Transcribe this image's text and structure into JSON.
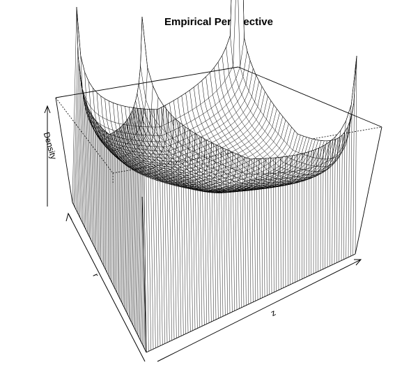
{
  "chart_data": {
    "type": "surface",
    "title": "Empirical Perspective",
    "xlabel": "z",
    "ylabel": "r",
    "zlabel": "Density",
    "box": true,
    "colors": {
      "lines": "#000000",
      "background": "#ffffff"
    }
  }
}
